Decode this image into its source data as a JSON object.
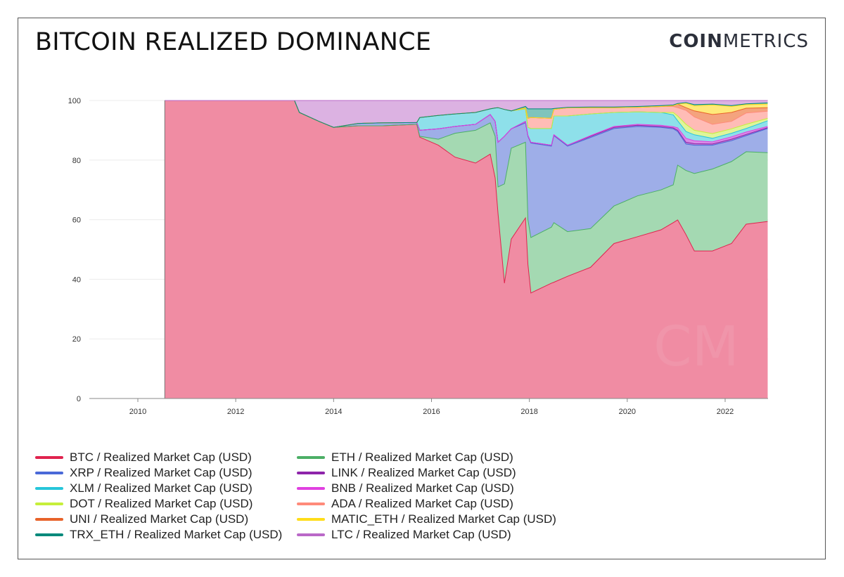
{
  "header": {
    "title": "BITCOIN REALIZED DOMINANCE",
    "logo_bold": "COIN",
    "logo_light": "METRICS"
  },
  "watermark": "CM",
  "chart_data": {
    "type": "area",
    "stacked": "percent",
    "title": "BITCOIN REALIZED DOMINANCE",
    "xlabel": "",
    "ylabel": "",
    "xlim": [
      2009.55,
      2022.87
    ],
    "ylim": [
      0,
      100
    ],
    "x_ticks": [
      2010,
      2012,
      2014,
      2016,
      2018,
      2020,
      2022
    ],
    "y_ticks": [
      0,
      20,
      40,
      60,
      80,
      100
    ],
    "grid": "horizontal",
    "legend_position": "bottom",
    "x": [
      2010.55,
      2013.2,
      2013.3,
      2013.7,
      2014.0,
      2014.5,
      2015.0,
      2015.7,
      2015.76,
      2016.14,
      2016.48,
      2016.9,
      2017.2,
      2017.3,
      2017.36,
      2017.49,
      2017.63,
      2017.92,
      2017.97,
      2018.03,
      2018.45,
      2018.5,
      2018.78,
      2019.25,
      2019.73,
      2020.21,
      2020.69,
      2020.94,
      2021.03,
      2021.2,
      2021.37,
      2021.74,
      2022.13,
      2022.43,
      2022.87
    ],
    "series": [
      {
        "name": "BTC / Realized Market Cap (USD)",
        "color": "#e0234e",
        "fill": "#f08ca3",
        "values": [
          100,
          100,
          96,
          93,
          91,
          91.5,
          91.5,
          92,
          87.7,
          85,
          81,
          79,
          82,
          74,
          62,
          38.7,
          53.5,
          60.6,
          45,
          35.4,
          38.7,
          39,
          41,
          44,
          52,
          54.3,
          56.6,
          59,
          59.9,
          55,
          49.5,
          49.5,
          52,
          58.5,
          59.4
        ]
      },
      {
        "name": "ETH / Realized Market Cap (USD)",
        "color": "#4caf66",
        "fill": "#a4d9b2",
        "values": [
          0,
          0,
          0,
          0,
          0,
          0,
          0,
          0,
          0.3,
          2,
          8,
          11,
          10.5,
          14,
          9,
          33.3,
          30.5,
          25.4,
          15,
          18.6,
          18.8,
          20,
          15,
          13,
          12.6,
          13.7,
          13.4,
          12.7,
          18.4,
          21.5,
          26,
          27.5,
          27.5,
          24.3,
          23.1
        ]
      },
      {
        "name": "XRP / Realized Market Cap (USD)",
        "color": "#4a69d8",
        "fill": "#9eaee8",
        "values": [
          0,
          0,
          0,
          0,
          0,
          0.8,
          1,
          0.6,
          2,
          3.5,
          2.3,
          2,
          2.8,
          5,
          15,
          16,
          6.5,
          6.5,
          28,
          31.7,
          27.2,
          29.2,
          28.7,
          30.6,
          26,
          23.3,
          21,
          18.8,
          11.3,
          8.9,
          9.5,
          8,
          7,
          5.4,
          8.1
        ]
      },
      {
        "name": "LINK / Realized Market Cap (USD)",
        "color": "#8e24aa",
        "fill": "#b87fd0",
        "values": [
          0,
          0,
          0,
          0,
          0,
          0,
          0,
          0,
          0,
          0,
          0,
          0,
          0,
          0,
          0,
          0,
          0,
          0.5,
          0.3,
          0.3,
          0.3,
          0.3,
          0.3,
          0.4,
          0.4,
          0.4,
          0.3,
          0.3,
          0.4,
          0.6,
          0.5,
          0.4,
          0.5,
          0.4,
          0.3
        ]
      },
      {
        "name": "BNB / Realized Market Cap (USD)",
        "color": "#e040e0",
        "fill": "#d98ae6",
        "values": [
          0,
          0,
          0,
          0,
          0,
          0,
          0,
          0,
          0,
          0,
          0,
          0,
          0,
          0,
          0,
          0,
          0,
          0,
          0,
          0,
          0,
          0,
          0,
          0.2,
          0.3,
          0.3,
          0.4,
          0.4,
          0.8,
          1.3,
          1,
          0.7,
          0.8,
          0.8,
          0.4
        ]
      },
      {
        "name": "XLM / Realized Market Cap (USD)",
        "color": "#26c6da",
        "fill": "#8ee0ea",
        "values": [
          0,
          0,
          0,
          0,
          0,
          0,
          0,
          0,
          4.3,
          4.5,
          4.2,
          4,
          1.9,
          4.5,
          11.6,
          9,
          6,
          4.2,
          2.7,
          4.6,
          5.6,
          6.3,
          9.8,
          7.3,
          4.7,
          4.2,
          4.3,
          4,
          2.4,
          2.3,
          2,
          1.2,
          1.2,
          1.2,
          1.9
        ]
      },
      {
        "name": "DOT / Realized Market Cap (USD)",
        "color": "#c6ef3a",
        "fill": "#def59a",
        "values": [
          0,
          0,
          0,
          0,
          0,
          0,
          0,
          0,
          0,
          0,
          0,
          0,
          0,
          0,
          0,
          0,
          0,
          0,
          0,
          0,
          0,
          0,
          0,
          0,
          0,
          0,
          0,
          0.8,
          1.6,
          2.4,
          1.5,
          1.6,
          1.5,
          1.4,
          0.8
        ]
      },
      {
        "name": "ADA / Realized Market Cap (USD)",
        "color": "#ff8a7a",
        "fill": "#ffbcb6",
        "values": [
          0,
          0,
          0,
          0,
          0,
          0,
          0,
          0,
          0,
          0,
          0,
          0,
          0,
          0,
          0,
          0,
          0,
          0.3,
          3,
          3.7,
          3.4,
          2.2,
          2.8,
          2.1,
          1.6,
          1.5,
          2,
          2,
          2.8,
          4.7,
          4.5,
          3.1,
          2.5,
          3.8,
          2.4
        ]
      },
      {
        "name": "UNI / Realized Market Cap (USD)",
        "color": "#e8632a",
        "fill": "#f4a37e",
        "values": [
          0,
          0,
          0,
          0,
          0,
          0,
          0,
          0,
          0,
          0,
          0,
          0,
          0,
          0,
          0,
          0,
          0,
          0,
          0,
          0,
          0,
          0,
          0,
          0,
          0,
          0,
          0,
          0.3,
          1.2,
          0.9,
          2,
          3.3,
          3,
          1.6,
          1.2
        ]
      },
      {
        "name": "MATIC_ETH / Realized Market Cap (USD)",
        "color": "#ffdd1a",
        "fill": "#ffe97a",
        "values": [
          0,
          0,
          0,
          0,
          0,
          0,
          0,
          0,
          0,
          0,
          0,
          0,
          0,
          0,
          0,
          0,
          0,
          0,
          0,
          0,
          0,
          0,
          0,
          0,
          0,
          0,
          0,
          0,
          0,
          1.5,
          1.7,
          3.2,
          2,
          1.2,
          1.2
        ]
      },
      {
        "name": "TRX_ETH / Realized Market Cap (USD)",
        "color": "#00897b",
        "fill": "#7fc4bb",
        "values": [
          0,
          0,
          0,
          0,
          0,
          0,
          0,
          0,
          0,
          0,
          0,
          0,
          0,
          0,
          0,
          0,
          0,
          0.5,
          3.2,
          2.9,
          3.2,
          0.3,
          0.1,
          0.2,
          0.2,
          0.3,
          0.3,
          0.2,
          0.2,
          0.2,
          0.4,
          0.3,
          0.3,
          0.3,
          0.4
        ]
      },
      {
        "name": "LTC / Realized Market Cap (USD)",
        "color": "#ba68c8",
        "fill": "#dcb2e2",
        "values": [
          0,
          0,
          4,
          7,
          9,
          7.7,
          7.5,
          7.4,
          5.7,
          5,
          4.5,
          4,
          2.8,
          2.5,
          2.4,
          3,
          3.5,
          2,
          2.8,
          2.8,
          2.8,
          2.7,
          2.3,
          2.2,
          2.2,
          2,
          1.7,
          1.5,
          1,
          0.7,
          1.4,
          1.2,
          1.7,
          1.1,
          0.8
        ]
      }
    ]
  },
  "legend_order": [
    0,
    2,
    5,
    6,
    8,
    10,
    1,
    3,
    4,
    7,
    9,
    11
  ]
}
